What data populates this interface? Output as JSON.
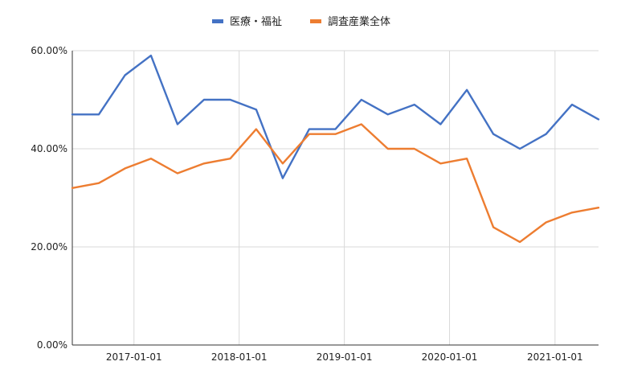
{
  "chart_data": {
    "type": "line",
    "title": "",
    "xlabel": "",
    "ylabel": "",
    "ylim": [
      0,
      60
    ],
    "y_ticks": [
      0,
      20,
      40,
      60
    ],
    "y_tick_labels": [
      "0.00%",
      "20.00%",
      "40.00%",
      "60.00%"
    ],
    "x_ticks": [
      "2017-01-01",
      "2018-01-01",
      "2019-01-01",
      "2020-01-01",
      "2021-01-01"
    ],
    "x": [
      "2016-06-01",
      "2016-09-01",
      "2016-12-01",
      "2017-03-01",
      "2017-06-01",
      "2017-09-01",
      "2017-12-01",
      "2018-03-01",
      "2018-06-01",
      "2018-09-01",
      "2018-12-01",
      "2019-03-01",
      "2019-06-01",
      "2019-09-01",
      "2019-12-01",
      "2020-03-01",
      "2020-06-01",
      "2020-09-01",
      "2020-12-01",
      "2021-03-01",
      "2021-06-01"
    ],
    "series": [
      {
        "name": "医療・福祉",
        "color": "#4472c4",
        "values": [
          47,
          47,
          55,
          59,
          45,
          50,
          50,
          48,
          34,
          44,
          44,
          50,
          47,
          49,
          45,
          52,
          43,
          40,
          43,
          49,
          46
        ]
      },
      {
        "name": "調査産業全体",
        "color": "#ed7d31",
        "values": [
          32,
          33,
          36,
          38,
          35,
          37,
          38,
          44,
          37,
          43,
          43,
          45,
          40,
          40,
          37,
          38,
          24,
          21,
          25,
          27,
          28
        ]
      }
    ],
    "grid": true,
    "legend_position": "top-center"
  }
}
